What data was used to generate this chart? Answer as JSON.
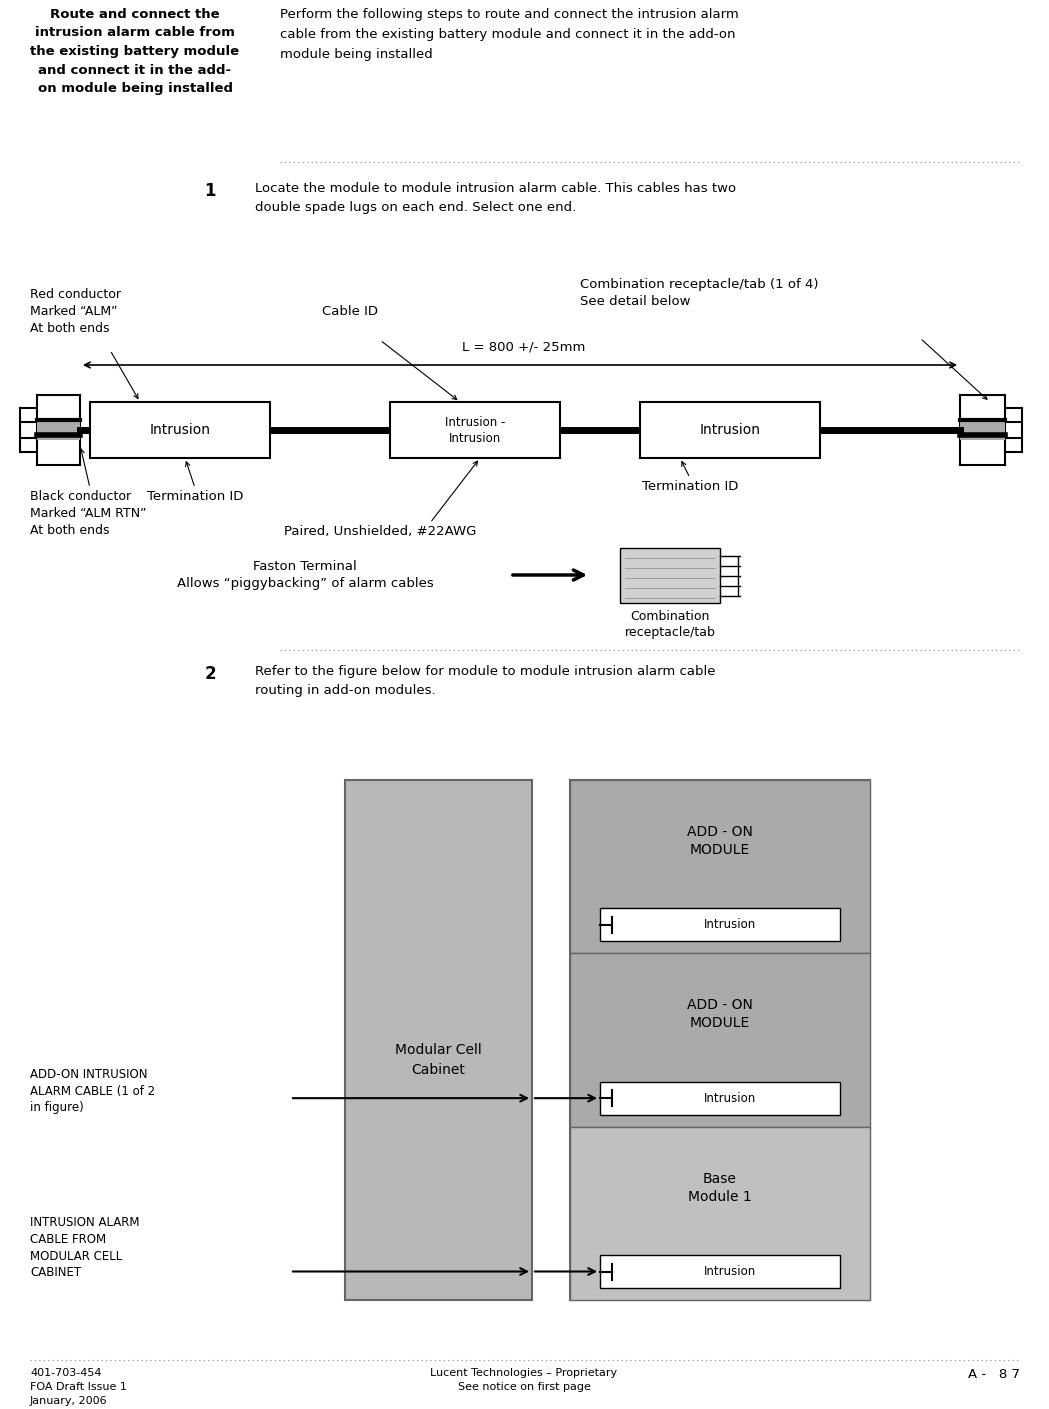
{
  "bg_color": "#ffffff",
  "page_width": 10.49,
  "page_height": 14.09,
  "header_bold_text": "Route and connect the\nintrusion alarm cable from\nthe existing battery module\nand connect it in the add-\non module being installed",
  "header_right_text": "Perform the following steps to route and connect the intrusion alarm\ncable from the existing battery module and connect it in the add-on\nmodule being installed",
  "step1_num": "1",
  "step1_text": "Locate the module to module intrusion alarm cable. This cables has two\ndouble spade lugs on each end. Select one end.",
  "step2_num": "2",
  "step2_text": "Refer to the figure below for module to module intrusion alarm cable\nrouting in add-on modules.",
  "footer_left": "401-703-454\nFOA Draft Issue 1\nJanuary, 2006",
  "footer_center": "Lucent Technologies – Proprietary\nSee notice on first page",
  "footer_right": "A -   8 7"
}
